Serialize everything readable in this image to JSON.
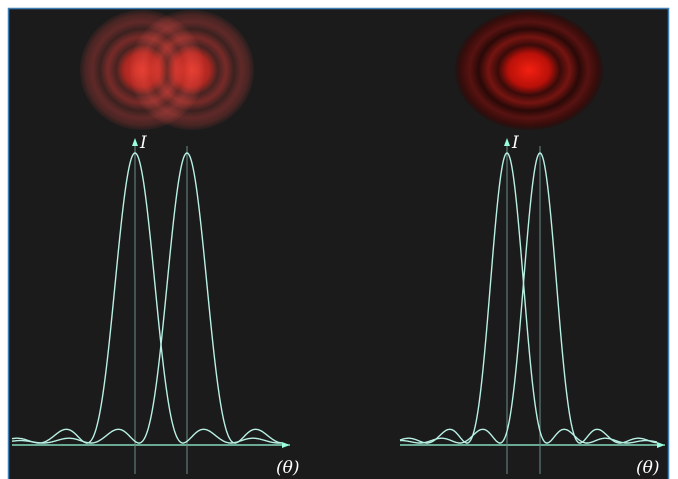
{
  "panels": [
    {
      "y_label": "I",
      "x_label": "(θ)"
    },
    {
      "y_label": "I",
      "x_label": "(θ)"
    }
  ]
}
